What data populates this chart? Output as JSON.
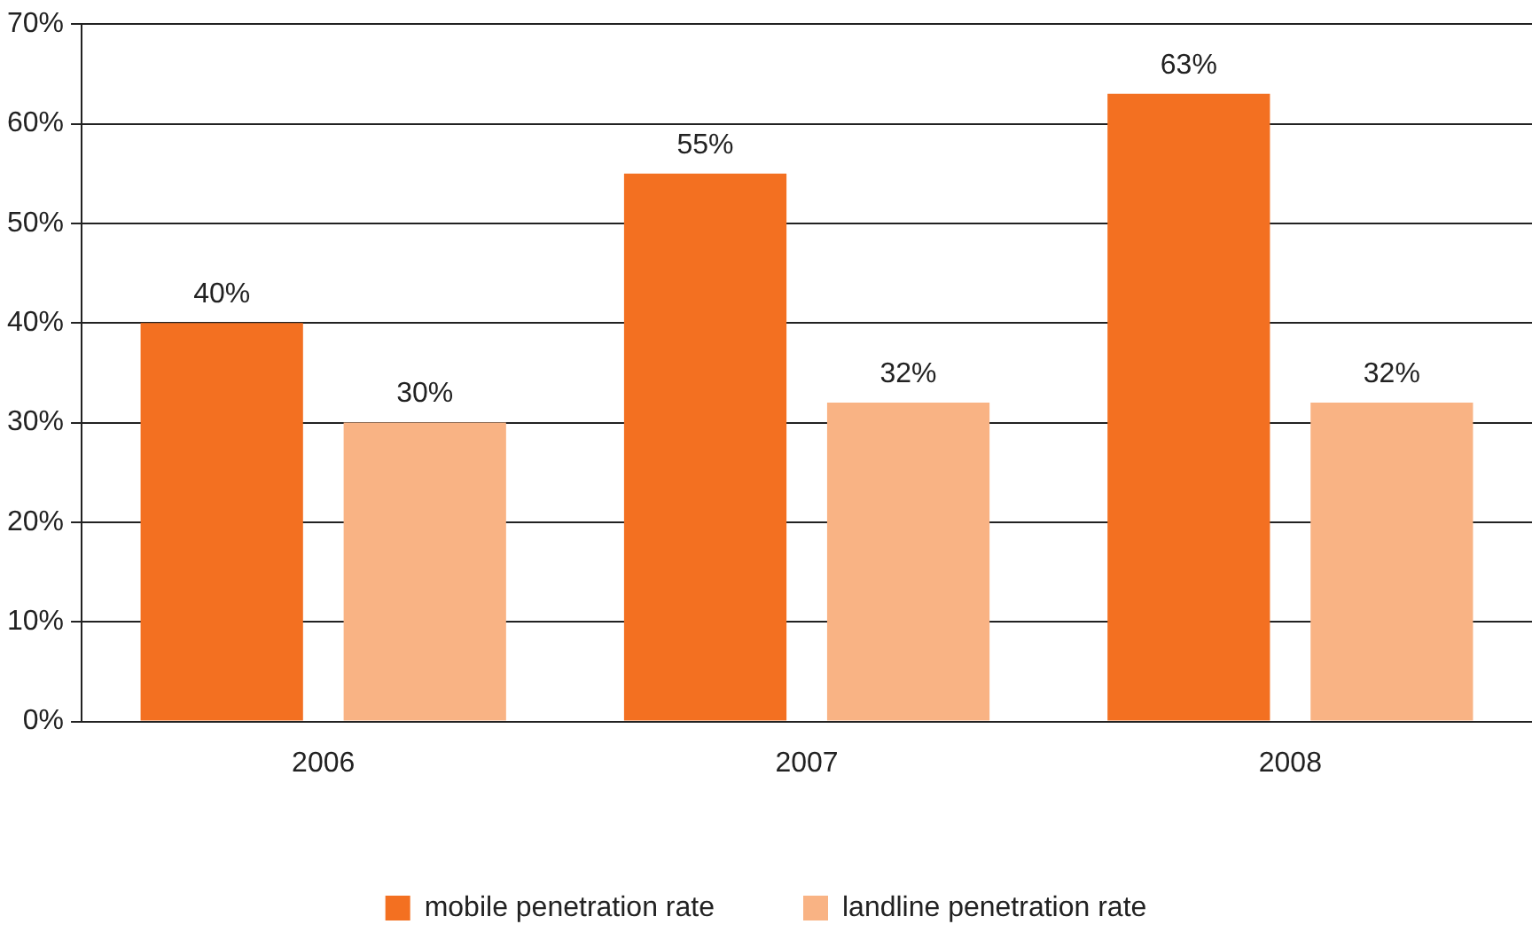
{
  "chart_data": {
    "type": "bar",
    "categories": [
      "2006",
      "2007",
      "2008"
    ],
    "series": [
      {
        "name": "mobile penetration rate",
        "color": "#f37021",
        "values": [
          40,
          55,
          63
        ],
        "value_labels": [
          "40%",
          "55%",
          "63%"
        ]
      },
      {
        "name": "landline penetration rate",
        "color": "#f9b384",
        "values": [
          30,
          32,
          32
        ],
        "value_labels": [
          "30%",
          "32%",
          "32%"
        ]
      }
    ],
    "ylim": [
      0,
      70
    ],
    "yticks": [
      {
        "value": 0,
        "label": "0%"
      },
      {
        "value": 10,
        "label": "10%"
      },
      {
        "value": 20,
        "label": "20%"
      },
      {
        "value": 30,
        "label": "30%"
      },
      {
        "value": 40,
        "label": "40%"
      },
      {
        "value": 50,
        "label": "50%"
      },
      {
        "value": 60,
        "label": "60%"
      },
      {
        "value": 70,
        "label": "70%"
      }
    ],
    "grid": "y",
    "legend": "bottom"
  }
}
